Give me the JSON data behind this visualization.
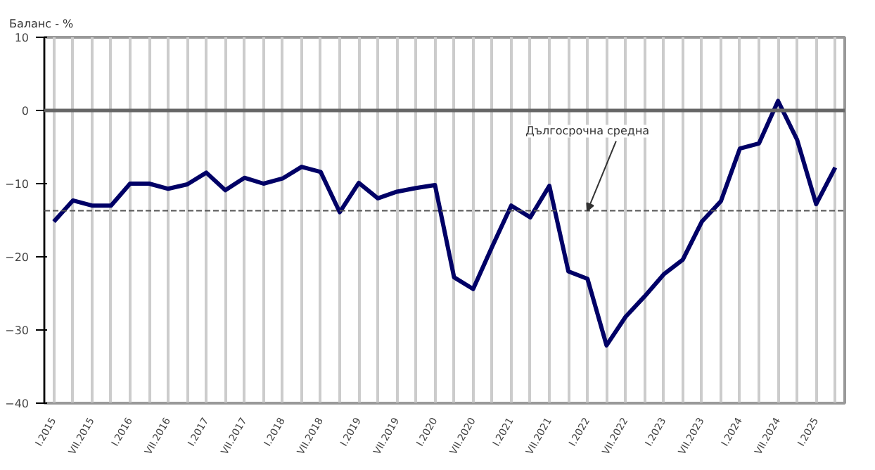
{
  "chart_data": {
    "type": "line",
    "ylabel": "Баланс - %",
    "categories": [
      "I.2015",
      null,
      "VII.2015",
      null,
      "I.2016",
      null,
      "VII.2016",
      null,
      "I.2017",
      null,
      "VII.2017",
      null,
      "I.2018",
      null,
      "VII.2018",
      null,
      "I.2019",
      null,
      "VII.2019",
      null,
      "I.2020",
      null,
      "VII.2020",
      null,
      "I.2021",
      null,
      "VII.2021",
      null,
      "I.2022",
      null,
      "VII.2022",
      null,
      "I.2023",
      null,
      "VII.2023",
      null,
      "I.2024",
      null,
      "VII.2024",
      null,
      "I.2025",
      null
    ],
    "series": [
      {
        "color": "#000066",
        "values": [
          -15.2,
          -12.3,
          -13,
          -13,
          -10,
          -10,
          -10.7,
          -10.1,
          -8.5,
          -10.9,
          -9.2,
          -10,
          -9.3,
          -7.7,
          -8.4,
          -13.9,
          -9.9,
          -12,
          -11.1,
          -10.6,
          -10.2,
          -22.8,
          -24.4,
          -18.6,
          -13,
          -14.6,
          -10.3,
          -22,
          -23,
          -32.1,
          -28.2,
          -25.4,
          -22.4,
          -20.4,
          -15.2,
          -12.4,
          -5.2,
          -4.5,
          1.3,
          -4,
          -12.8,
          -7.8
        ]
      }
    ],
    "ylim": [
      -40,
      10
    ],
    "yticks": [
      -40,
      -30,
      -20,
      -10,
      0,
      10
    ],
    "grid": "x",
    "marker": "none",
    "line_style": "solid",
    "ref_lines": [
      {
        "axis": "y",
        "value": 0,
        "color": "#666666"
      },
      {
        "axis": "y",
        "value": -13.7,
        "color": "#555555",
        "line_style": "dashed"
      }
    ],
    "annotations": [
      {
        "text": "Дългосрочна средна",
        "x": "I.2022",
        "y": -13.7
      }
    ]
  }
}
